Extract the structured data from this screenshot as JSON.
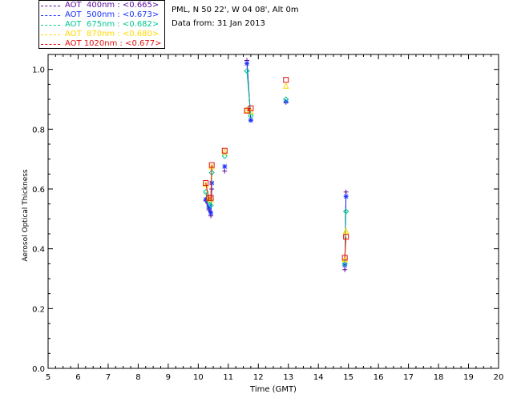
{
  "legend": [
    {
      "label": "AOT  400nm : <0.665>",
      "color": "#5a0a9a"
    },
    {
      "label": "AOT  500nm : <0.673>",
      "color": "#1a30ff"
    },
    {
      "label": "AOT  675nm : <0.682>",
      "color": "#00c890"
    },
    {
      "label": "AOT  870nm : <0.680>",
      "color": "#ffd800"
    },
    {
      "label": "AOT 1020nm : <0.677>",
      "color": "#e01010"
    }
  ],
  "info": {
    "site": "PML, N 50 22', W 04 08', Alt 0m",
    "date": "Data from: 31 Jan 2013"
  },
  "chart_data": {
    "type": "scatter",
    "xlabel": "Time (GMT)",
    "ylabel": "Aerosol Optical Thickness",
    "xlim": [
      5,
      20
    ],
    "ylim": [
      0.0,
      1.05
    ],
    "xticks": [
      "5",
      "6",
      "7",
      "8",
      "9",
      "10",
      "11",
      "12",
      "13",
      "14",
      "15",
      "16",
      "17",
      "18",
      "19",
      "20"
    ],
    "yticks": [
      "0.0",
      "0.2",
      "0.4",
      "0.6",
      "0.8",
      "1.0"
    ],
    "grid": false,
    "legend_position": "top-left outside",
    "series": [
      {
        "name": "AOT 400nm",
        "color": "#5a0a9a",
        "marker": "plus",
        "x": [
          10.25,
          10.35,
          10.42,
          10.45,
          10.88,
          11.62,
          11.75,
          12.92,
          14.88,
          14.92
        ],
        "y": [
          0.56,
          0.53,
          0.51,
          0.6,
          0.66,
          1.03,
          0.83,
          0.89,
          0.33,
          0.59
        ]
      },
      {
        "name": "AOT 500nm",
        "color": "#1a30ff",
        "marker": "asterisk",
        "x": [
          10.25,
          10.35,
          10.42,
          10.45,
          10.88,
          11.62,
          11.75,
          12.92,
          14.88,
          14.92
        ],
        "y": [
          0.565,
          0.54,
          0.52,
          0.62,
          0.675,
          1.02,
          0.83,
          0.893,
          0.345,
          0.575
        ]
      },
      {
        "name": "AOT 675nm",
        "color": "#00c890",
        "marker": "diamond",
        "x": [
          10.25,
          10.35,
          10.42,
          10.45,
          10.88,
          11.62,
          11.75,
          12.92,
          14.88,
          14.92
        ],
        "y": [
          0.59,
          0.56,
          0.545,
          0.655,
          0.71,
          0.995,
          0.845,
          0.9,
          0.35,
          0.525
        ]
      },
      {
        "name": "AOT 870nm",
        "color": "#ffd800",
        "marker": "triangle",
        "x": [
          10.25,
          10.35,
          10.42,
          10.45,
          10.88,
          11.62,
          11.75,
          12.92,
          14.88,
          14.92
        ],
        "y": [
          0.615,
          0.57,
          0.565,
          0.675,
          0.725,
          0.865,
          0.86,
          0.945,
          0.365,
          0.46
        ]
      },
      {
        "name": "AOT 1020nm",
        "color": "#e01010",
        "marker": "square",
        "x": [
          10.25,
          10.35,
          10.42,
          10.45,
          10.88,
          11.62,
          11.75,
          12.92,
          14.88,
          14.92
        ],
        "y": [
          0.62,
          0.57,
          0.57,
          0.68,
          0.728,
          0.862,
          0.87,
          0.965,
          0.37,
          0.44
        ]
      }
    ]
  }
}
